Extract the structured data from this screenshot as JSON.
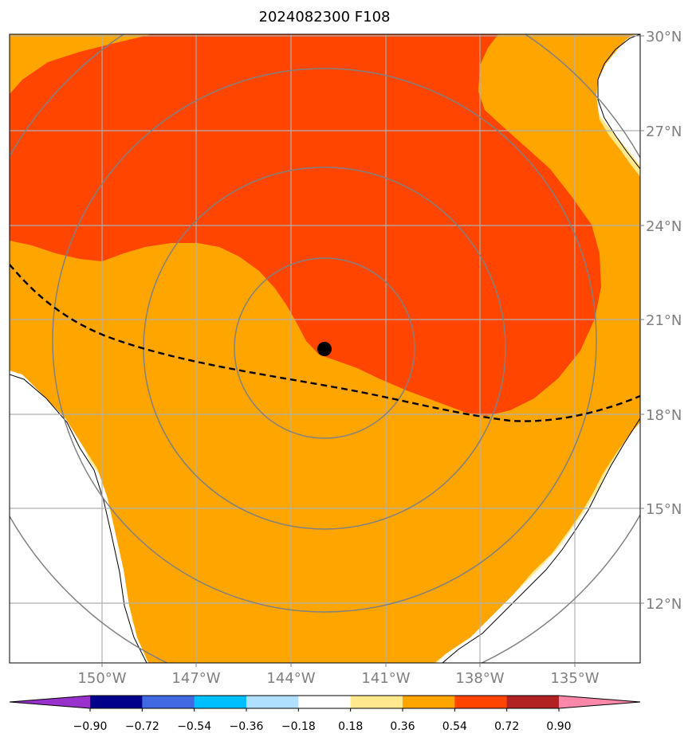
{
  "title": "2024082300 F108",
  "map": {
    "lat_labels": [
      "30°N",
      "27°N",
      "24°N",
      "21°N",
      "18°N",
      "15°N",
      "12°N"
    ],
    "lon_labels": [
      "150°W",
      "147°W",
      "144°W",
      "141°W",
      "138°W",
      "135°W"
    ],
    "storm_center": {
      "lon": "142.0°W",
      "lat": "20.0°N"
    },
    "range_rings_count": 4,
    "track_style": "dashed"
  },
  "colorbar": {
    "ticks": [
      "−0.90",
      "−0.72",
      "−0.54",
      "−0.36",
      "−0.18",
      "0.18",
      "0.36",
      "0.54",
      "0.72",
      "0.90"
    ],
    "colors": [
      "#9932CC",
      "#00008B",
      "#4169E1",
      "#00BFFF",
      "#B0E0FF",
      "#FFFFFF",
      "#FFE98C",
      "#FFA500",
      "#FF4500",
      "#B22222",
      "#FF88AA"
    ],
    "extend": "both"
  },
  "fill_colors": {
    "low": "#FFE98C",
    "mid": "#FFA500",
    "high": "#FF4500",
    "background": "#FFFFFF"
  }
}
